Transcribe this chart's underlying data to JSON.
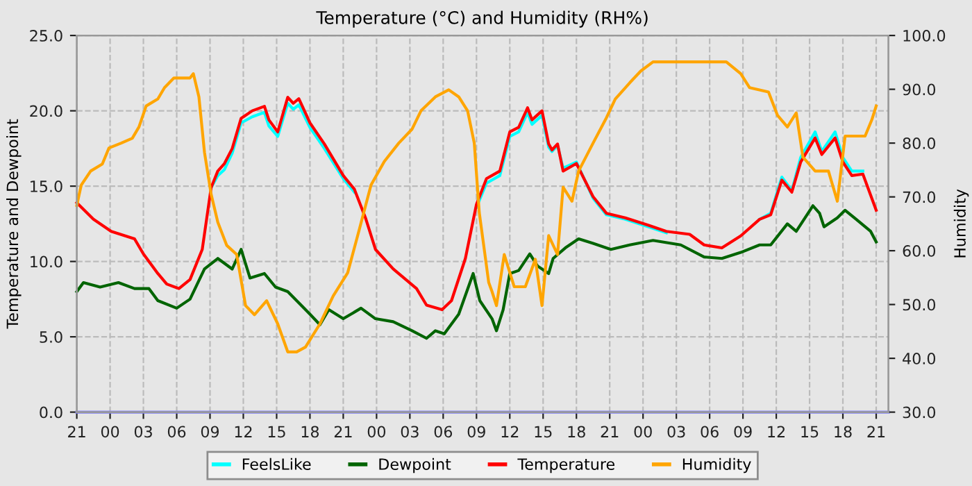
{
  "chart_data": {
    "type": "line",
    "title": "Temperature (°C) and Humidity (RH%)",
    "ylabel": "Temperature and Dewpoint",
    "y2label": "Humidity",
    "xlim": [
      "2000-01-01T21:00",
      "2000-01-04T22:06"
    ],
    "ylim": [
      0,
      25
    ],
    "y2lim": [
      30,
      100
    ],
    "xticks": [
      {
        "value": "2000-01-01T21:00",
        "label": "21"
      },
      {
        "value": "2000-01-02T00:00",
        "label": "00"
      },
      {
        "value": "2000-01-02T03:00",
        "label": "03"
      },
      {
        "value": "2000-01-02T06:00",
        "label": "06"
      },
      {
        "value": "2000-01-02T09:00",
        "label": "09"
      },
      {
        "value": "2000-01-02T12:00",
        "label": "12"
      },
      {
        "value": "2000-01-02T15:00",
        "label": "15"
      },
      {
        "value": "2000-01-02T18:00",
        "label": "18"
      },
      {
        "value": "2000-01-02T21:00",
        "label": "21"
      },
      {
        "value": "2000-01-03T00:00",
        "label": "00"
      },
      {
        "value": "2000-01-03T03:00",
        "label": "03"
      },
      {
        "value": "2000-01-03T06:00",
        "label": "06"
      },
      {
        "value": "2000-01-03T09:00",
        "label": "09"
      },
      {
        "value": "2000-01-03T12:00",
        "label": "12"
      },
      {
        "value": "2000-01-03T15:00",
        "label": "15"
      },
      {
        "value": "2000-01-03T18:00",
        "label": "18"
      },
      {
        "value": "2000-01-03T21:00",
        "label": "21"
      },
      {
        "value": "2000-01-04T00:00",
        "label": "00"
      },
      {
        "value": "2000-01-04T03:00",
        "label": "03"
      },
      {
        "value": "2000-01-04T06:00",
        "label": "06"
      },
      {
        "value": "2000-01-04T09:00",
        "label": "09"
      },
      {
        "value": "2000-01-04T12:00",
        "label": "12"
      },
      {
        "value": "2000-01-04T15:00",
        "label": "15"
      },
      {
        "value": "2000-01-04T18:00",
        "label": "18"
      },
      {
        "value": "2000-01-04T21:00",
        "label": "21"
      }
    ],
    "yticks": [
      {
        "value": 0,
        "label": "0.0"
      },
      {
        "value": 5,
        "label": "5.0"
      },
      {
        "value": 10,
        "label": "10.0"
      },
      {
        "value": 15,
        "label": "15.0"
      },
      {
        "value": 20,
        "label": "20.0"
      },
      {
        "value": 25,
        "label": "25.0"
      }
    ],
    "y2ticks": [
      {
        "value": 30,
        "label": "30.0"
      },
      {
        "value": 40,
        "label": "40.0"
      },
      {
        "value": 50,
        "label": "50.0"
      },
      {
        "value": 60,
        "label": "60.0"
      },
      {
        "value": 70,
        "label": "70.0"
      },
      {
        "value": 80,
        "label": "80.0"
      },
      {
        "value": 90,
        "label": "90.0"
      },
      {
        "value": 100,
        "label": "100.0"
      }
    ],
    "grid": true,
    "legend": "bottom",
    "marker": "none",
    "line_style": "solid",
    "x": [
      "2000-01-01T21:00",
      "2000-01-01T22:30",
      "2000-01-02T00:06",
      "2000-01-02T02:12",
      "2000-01-02T03:00",
      "2000-01-02T04:18",
      "2000-01-02T05:06",
      "2000-01-02T06:12",
      "2000-01-02T07:12",
      "2000-01-02T08:18",
      "2000-01-02T09:06",
      "2000-01-02T09:42",
      "2000-01-02T10:18",
      "2000-01-02T11:00",
      "2000-01-02T11:48",
      "2000-01-02T12:48",
      "2000-01-02T13:54",
      "2000-01-02T14:18",
      "2000-01-02T15:06",
      "2000-01-02T16:00",
      "2000-01-02T16:30",
      "2000-01-02T17:00",
      "2000-01-02T18:00",
      "2000-01-02T19:18",
      "2000-01-02T21:00",
      "2000-01-02T22:00",
      "2000-01-02T23:00",
      "2000-01-02T23:54",
      "2000-01-03T01:30",
      "2000-01-03T03:36",
      "2000-01-03T04:30",
      "2000-01-03T05:54",
      "2000-01-03T06:45",
      "2000-01-03T08:00",
      "2000-01-03T09:00",
      "2000-01-03T09:54",
      "2000-01-03T11:06",
      "2000-01-03T12:00",
      "2000-01-03T12:48",
      "2000-01-03T13:36",
      "2000-01-03T14:00",
      "2000-01-03T14:54",
      "2000-01-03T15:30",
      "2000-01-03T15:48",
      "2000-01-03T16:18",
      "2000-01-03T16:48",
      "2000-01-03T18:00",
      "2000-01-03T19:30",
      "2000-01-03T20:42",
      "2000-01-03T22:24",
      "2000-01-04T00:30",
      "2000-01-04T02:06",
      "2000-01-04T04:12",
      "2000-01-04T05:30",
      "2000-01-04T07:06",
      "2000-01-04T08:48",
      "2000-01-04T10:30",
      "2000-01-04T11:30",
      "2000-01-04T12:30",
      "2000-01-04T13:24",
      "2000-01-04T14:12",
      "2000-01-04T15:30",
      "2000-01-04T16:06",
      "2000-01-04T17:18",
      "2000-01-04T18:00",
      "2000-01-04T18:48",
      "2000-01-04T19:48",
      "2000-01-04T21:00"
    ],
    "series": [
      {
        "color": "#8080ff",
        "x": [
          "2000-01-01T21:00",
          "2000-01-04T22:06"
        ],
        "values": [
          0,
          0
        ]
      },
      {
        "name": "FeelsLike",
        "color": "#00ffff",
        "values": [
          null,
          null,
          null,
          null,
          null,
          null,
          null,
          null,
          null,
          null,
          14.9,
          15.7,
          16.1,
          17.2,
          19.2,
          19.6,
          19.9,
          19.0,
          18.3,
          20.5,
          20.1,
          20.4,
          18.9,
          17.5,
          15.5,
          14.6,
          null,
          null,
          null,
          null,
          null,
          null,
          null,
          null,
          13.6,
          15.2,
          15.7,
          18.3,
          18.6,
          19.9,
          19.1,
          19.7,
          17.6,
          17.3,
          17.7,
          16.2,
          16.6,
          14.2,
          13.1,
          12.8,
          12.3,
          11.9,
          null,
          null,
          null,
          null,
          12.8,
          13.2,
          15.6,
          14.7,
          16.9,
          18.6,
          17.3,
          18.6,
          16.9,
          16.0,
          16.0,
          null
        ]
      },
      {
        "name": "Dewpoint",
        "color": "#006400",
        "x": [
          "2000-01-01T21:00",
          "2000-01-01T21:36",
          "2000-01-01T23:06",
          "2000-01-02T00:45",
          "2000-01-02T02:12",
          "2000-01-02T03:30",
          "2000-01-02T04:18",
          "2000-01-02T06:00",
          "2000-01-02T07:12",
          "2000-01-02T08:30",
          "2000-01-02T09:42",
          "2000-01-02T11:00",
          "2000-01-02T11:48",
          "2000-01-02T12:36",
          "2000-01-02T13:54",
          "2000-01-02T14:54",
          "2000-01-02T16:00",
          "2000-01-02T17:12",
          "2000-01-02T18:00",
          "2000-01-02T18:54",
          "2000-01-02T19:42",
          "2000-01-02T21:00",
          "2000-01-02T22:36",
          "2000-01-02T23:54",
          "2000-01-03T01:30",
          "2000-01-03T03:12",
          "2000-01-03T04:30",
          "2000-01-03T05:18",
          "2000-01-03T06:06",
          "2000-01-03T07:24",
          "2000-01-03T08:42",
          "2000-01-03T09:18",
          "2000-01-03T10:24",
          "2000-01-03T10:48",
          "2000-01-03T11:24",
          "2000-01-03T12:00",
          "2000-01-03T12:48",
          "2000-01-03T13:48",
          "2000-01-03T14:30",
          "2000-01-03T15:30",
          "2000-01-03T15:54",
          "2000-01-03T17:00",
          "2000-01-03T18:12",
          "2000-01-03T19:30",
          "2000-01-03T21:06",
          "2000-01-03T22:48",
          "2000-01-04T00:54",
          "2000-01-04T03:24",
          "2000-01-04T05:30",
          "2000-01-04T07:06",
          "2000-01-04T08:48",
          "2000-01-04T10:30",
          "2000-01-04T11:30",
          "2000-01-04T13:00",
          "2000-01-04T13:48",
          "2000-01-04T15:18",
          "2000-01-04T15:54",
          "2000-01-04T16:18",
          "2000-01-04T17:30",
          "2000-01-04T18:12",
          "2000-01-04T19:12",
          "2000-01-04T20:30",
          "2000-01-04T21:00"
        ],
        "values": [
          8.0,
          8.6,
          8.3,
          8.6,
          8.2,
          8.2,
          7.4,
          6.9,
          7.5,
          9.5,
          10.2,
          9.5,
          10.8,
          8.9,
          9.2,
          8.3,
          8.0,
          7.1,
          6.5,
          5.8,
          6.8,
          6.2,
          6.9,
          6.2,
          6.0,
          5.4,
          4.9,
          5.4,
          5.2,
          6.5,
          9.2,
          7.4,
          6.2,
          5.4,
          6.8,
          9.2,
          9.4,
          10.5,
          9.7,
          9.2,
          10.2,
          10.9,
          11.5,
          11.2,
          10.8,
          11.1,
          11.4,
          11.1,
          10.3,
          10.2,
          10.6,
          11.1,
          11.1,
          12.5,
          12.0,
          13.7,
          13.2,
          12.3,
          12.9,
          13.4,
          12.8,
          12.0,
          11.3
        ]
      },
      {
        "name": "Temperature",
        "color": "#ff0000",
        "values": [
          13.9,
          12.8,
          12.0,
          11.5,
          10.5,
          9.2,
          8.5,
          8.2,
          8.8,
          10.8,
          14.9,
          16.0,
          16.5,
          17.5,
          19.5,
          20.0,
          20.3,
          19.4,
          18.6,
          20.9,
          20.5,
          20.8,
          19.2,
          17.8,
          15.7,
          14.8,
          12.9,
          10.8,
          9.5,
          8.2,
          7.1,
          6.8,
          7.4,
          10.2,
          13.8,
          15.5,
          16.0,
          18.6,
          18.9,
          20.2,
          19.4,
          20.0,
          17.8,
          17.4,
          17.8,
          16.0,
          16.5,
          14.3,
          13.2,
          12.9,
          12.4,
          12.0,
          11.8,
          11.1,
          10.9,
          11.7,
          12.8,
          13.1,
          15.4,
          14.6,
          16.6,
          18.2,
          17.1,
          18.2,
          16.6,
          15.7,
          15.8,
          13.4
        ]
      },
      {
        "name": "Humidity",
        "color": "#ffa500",
        "axis": "y2",
        "x": [
          "2000-01-01T21:00",
          "2000-01-01T21:24",
          "2000-01-01T22:15",
          "2000-01-01T23:18",
          "2000-01-01T23:54",
          "2000-01-02T01:00",
          "2000-01-02T02:00",
          "2000-01-02T02:36",
          "2000-01-02T03:15",
          "2000-01-02T04:18",
          "2000-01-02T04:54",
          "2000-01-02T05:45",
          "2000-01-02T07:12",
          "2000-01-02T07:30",
          "2000-01-02T08:00",
          "2000-01-02T08:30",
          "2000-01-02T09:06",
          "2000-01-02T09:42",
          "2000-01-02T10:30",
          "2000-01-02T11:24",
          "2000-01-02T12:12",
          "2000-01-02T13:00",
          "2000-01-02T14:06",
          "2000-01-02T15:06",
          "2000-01-02T16:00",
          "2000-01-02T16:48",
          "2000-01-02T17:36",
          "2000-01-02T18:54",
          "2000-01-02T20:06",
          "2000-01-02T21:24",
          "2000-01-02T22:24",
          "2000-01-02T23:30",
          "2000-01-03T00:42",
          "2000-01-03T02:00",
          "2000-01-03T03:12",
          "2000-01-03T04:00",
          "2000-01-03T05:18",
          "2000-01-03T06:30",
          "2000-01-03T07:24",
          "2000-01-03T08:12",
          "2000-01-03T08:48",
          "2000-01-03T09:15",
          "2000-01-03T10:06",
          "2000-01-03T10:24",
          "2000-01-03T10:48",
          "2000-01-03T11:30",
          "2000-01-03T12:24",
          "2000-01-03T13:24",
          "2000-01-03T14:18",
          "2000-01-03T14:54",
          "2000-01-03T15:30",
          "2000-01-03T16:18",
          "2000-01-03T16:48",
          "2000-01-03T17:36",
          "2000-01-03T18:12",
          "2000-01-03T19:30",
          "2000-01-03T20:42",
          "2000-01-03T21:30",
          "2000-01-03T22:48",
          "2000-01-03T23:48",
          "2000-01-04T00:54",
          "2000-01-04T02:06",
          "2000-01-04T07:30",
          "2000-01-04T08:48",
          "2000-01-04T09:36",
          "2000-01-04T11:18",
          "2000-01-04T12:06",
          "2000-01-04T13:00",
          "2000-01-04T13:48",
          "2000-01-04T14:24",
          "2000-01-04T15:30",
          "2000-01-04T16:42",
          "2000-01-04T17:30",
          "2000-01-04T18:12",
          "2000-01-04T20:00",
          "2000-01-04T20:36",
          "2000-01-04T21:00"
        ],
        "values": [
          68.4,
          72.2,
          74.8,
          76.1,
          79.1,
          80,
          80.9,
          83,
          86.9,
          88.2,
          90.3,
          92.1,
          92.1,
          92.9,
          88.6,
          78.3,
          70.5,
          65.3,
          61.0,
          59.3,
          49.8,
          48.1,
          50.7,
          46.4,
          41.2,
          41.2,
          42.1,
          46.4,
          51.6,
          55.9,
          63.6,
          72.2,
          76.6,
          80,
          82.6,
          86,
          88.6,
          89.9,
          88.6,
          86,
          80,
          67.1,
          54.1,
          52.4,
          49.8,
          59.3,
          53.3,
          53.3,
          58.4,
          49.8,
          62.8,
          59.3,
          71.8,
          69.2,
          74.8,
          80,
          84.7,
          88.2,
          91.2,
          93.4,
          95.1,
          95.1,
          95.1,
          92.9,
          90.3,
          89.5,
          85.2,
          83,
          85.6,
          77.4,
          74.8,
          74.8,
          69.2,
          81.3,
          81.3,
          84.3,
          86.9
        ]
      }
    ]
  }
}
